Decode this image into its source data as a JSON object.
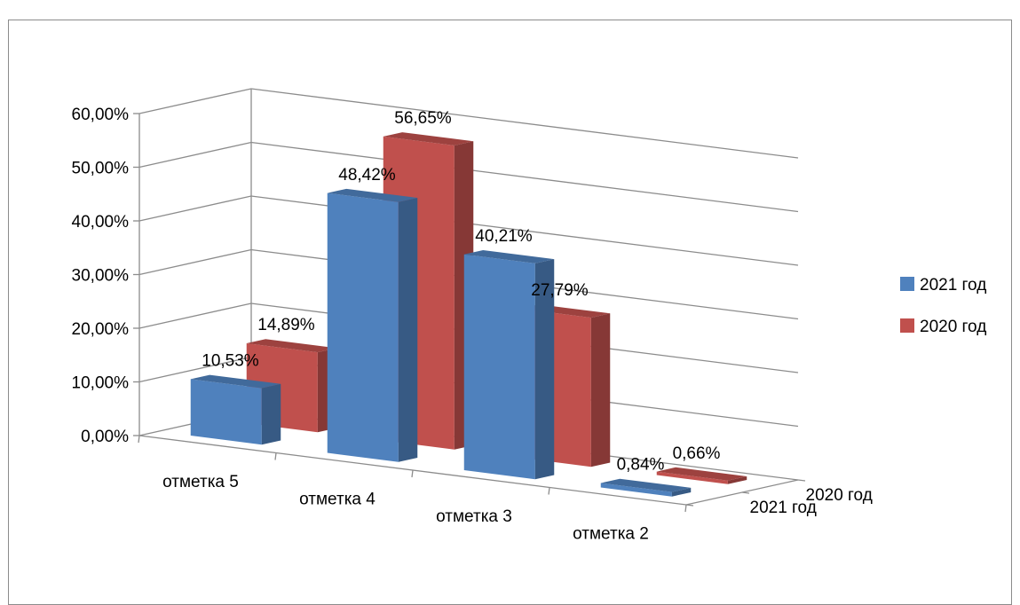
{
  "chart_data": {
    "type": "bar",
    "categories": [
      "отметка 5",
      "отметка 4",
      "отметка 3",
      "отметка 2"
    ],
    "series": [
      {
        "name": "2021 год",
        "values": [
          10.53,
          48.42,
          40.21,
          0.84
        ],
        "labels": [
          "10,53%",
          "48,42%",
          "40,21%",
          "0,84%"
        ]
      },
      {
        "name": "2020 год",
        "values": [
          14.89,
          56.65,
          27.79,
          0.66
        ],
        "labels": [
          "14,89%",
          "56,65%",
          "27,79%",
          "0,66%"
        ]
      }
    ],
    "yticks": [
      "0,00%",
      "10,00%",
      "20,00%",
      "30,00%",
      "40,00%",
      "50,00%",
      "60,00%"
    ],
    "ylim": [
      0,
      60
    ],
    "depth_labels": [
      "2021 год",
      "2020 год"
    ],
    "legend_position": "right",
    "grid": true,
    "style": "3d-column"
  },
  "colors": {
    "series_2021": "#4f81bd",
    "series_2020": "#c0504d"
  }
}
